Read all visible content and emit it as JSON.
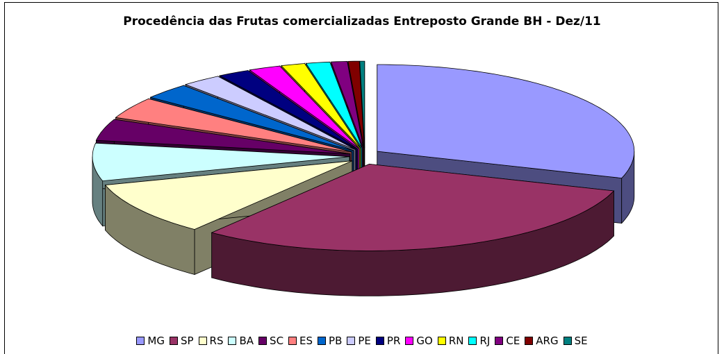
{
  "chart_data": {
    "type": "pie3d",
    "title": "Procedência das Frutas comercializadas Entreposto Grande BH - Dez/11",
    "categories": [
      "MG",
      "SP",
      "RS",
      "BA",
      "SC",
      "ES",
      "PB",
      "PE",
      "PR",
      "GO",
      "RN",
      "RJ",
      "CE",
      "ARG",
      "SE"
    ],
    "values": [
      30,
      30.5,
      10,
      7,
      4,
      4,
      3,
      2.5,
      2,
      2,
      1.5,
      1.5,
      1,
      0.7,
      0.3
    ],
    "colors": [
      "#9999ff",
      "#993366",
      "#ffffcc",
      "#ccffff",
      "#660066",
      "#ff8080",
      "#0066cc",
      "#ccccff",
      "#000080",
      "#ff00ff",
      "#ffff00",
      "#00ffff",
      "#800080",
      "#800000",
      "#008080"
    ],
    "legend": "bottom"
  }
}
